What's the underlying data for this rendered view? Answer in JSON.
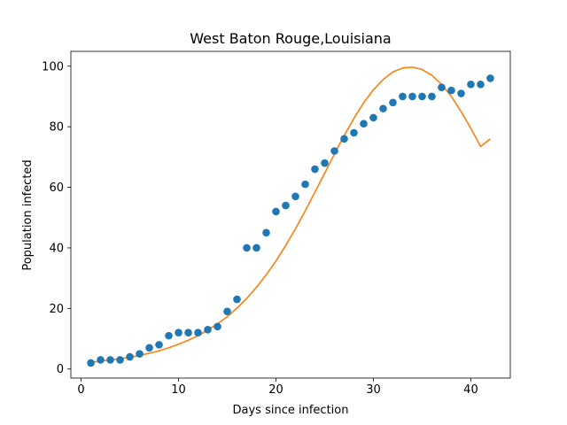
{
  "chart_data": {
    "type": "scatter",
    "title": "West Baton Rouge,Louisiana",
    "xlabel": "Days since infection",
    "ylabel": "Population infected",
    "xlim": [
      -1.05,
      44.05
    ],
    "ylim": [
      -3.0,
      104.9
    ],
    "xticks": [
      0,
      10,
      20,
      30,
      40
    ],
    "yticks": [
      0,
      20,
      40,
      60,
      80,
      100
    ],
    "grid": false,
    "series": [
      {
        "kind": "scatter",
        "color": "#1f77b4",
        "x": [
          1,
          2,
          3,
          4,
          5,
          6,
          7,
          8,
          9,
          10,
          11,
          12,
          13,
          14,
          15,
          16,
          17,
          18,
          19,
          20,
          21,
          22,
          23,
          24,
          25,
          26,
          27,
          28,
          29,
          30,
          31,
          32,
          33,
          34,
          35,
          36,
          37,
          38,
          39,
          40,
          41,
          42
        ],
        "y": [
          2,
          3,
          3,
          3,
          4,
          5,
          7,
          8,
          11,
          12,
          12,
          12,
          13,
          14,
          19,
          23,
          40,
          40,
          45,
          52,
          54,
          57,
          61,
          66,
          68,
          72,
          76,
          78,
          81,
          83,
          86,
          88,
          90,
          90,
          90,
          90,
          93,
          92,
          91,
          94,
          94,
          96
        ]
      },
      {
        "kind": "line",
        "color": "#ff7f0e",
        "x": [
          1,
          2,
          3,
          4,
          5,
          6,
          7,
          8,
          9,
          10,
          11,
          12,
          13,
          14,
          15,
          16,
          17,
          18,
          19,
          20,
          21,
          22,
          23,
          24,
          25,
          26,
          27,
          28,
          29,
          30,
          31,
          32,
          33,
          34,
          35,
          36,
          37,
          38,
          39,
          40,
          41,
          42
        ],
        "y": [
          2.2,
          2.6,
          3.0,
          3.4,
          3.9,
          4.5,
          5.2,
          6.0,
          7.0,
          8.2,
          9.5,
          11.0,
          12.8,
          14.9,
          17.3,
          20.1,
          23.3,
          27.0,
          31.1,
          35.7,
          40.8,
          46.3,
          52.2,
          58.4,
          64.7,
          71.0,
          77.1,
          82.8,
          87.9,
          92.2,
          95.6,
          98.1,
          99.4,
          99.7,
          98.9,
          97.0,
          94.0,
          90.0,
          85.0,
          79.5,
          73.5,
          76.0
        ]
      }
    ]
  }
}
